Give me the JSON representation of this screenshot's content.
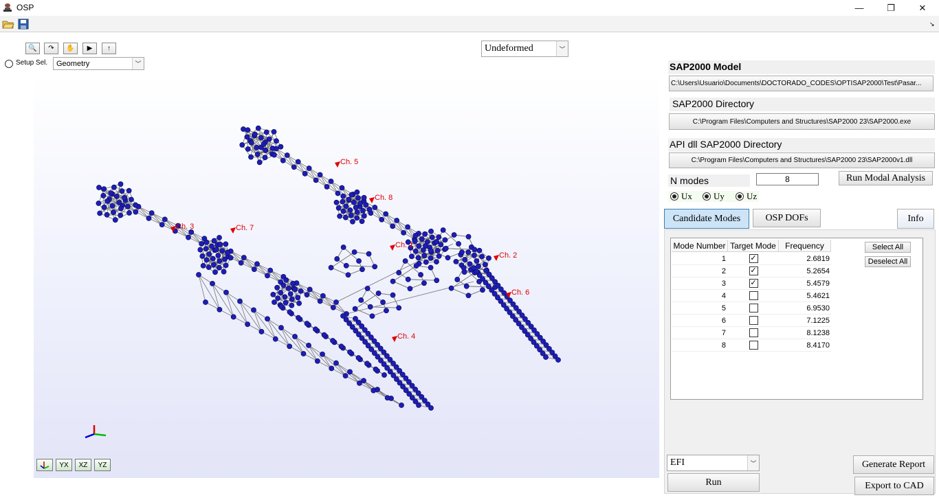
{
  "window": {
    "title": "OSP",
    "minimize": "—",
    "maximize": "❐",
    "close": "✕"
  },
  "view_toolbar": {
    "zoom_icon": "🔍",
    "rotate_icon": "↷",
    "pan_icon": "✋",
    "play_icon": "▶",
    "up_icon": "↑"
  },
  "setup": {
    "label": "Setup Sel.",
    "geometry_value": "Geometry"
  },
  "deform_select": {
    "value": "Undeformed"
  },
  "axis_buttons": {
    "xyz": "",
    "yx": "YX",
    "xz": "XZ",
    "yz": "YZ"
  },
  "channels": [
    "Ch. 5",
    "Ch. 8",
    "Ch. 3",
    "Ch. 7",
    "Ch. 1",
    "Ch. 2",
    "Ch. 6",
    "Ch. 4"
  ],
  "panel": {
    "sap_model_label": "SAP2000 Model",
    "sap_model_path": "C:\\Users\\Usuario\\Documents\\DOCTORADO_CODES\\OPTISAP2000\\Test\\Pasar...",
    "sap_dir_label": "SAP2000 Directory",
    "sap_dir_path": "C:\\Program Files\\Computers and Structures\\SAP2000 23\\SAP2000.exe",
    "api_dir_label": "API dll SAP2000 Directory",
    "api_dir_path": "C:\\Program Files\\Computers and Structures\\SAP2000 23\\SAP2000v1.dll",
    "n_modes_label": "N modes",
    "n_modes_value": "8",
    "run_modal_button": "Run Modal Analysis",
    "dofs": [
      "Ux",
      "Uy",
      "Uz"
    ]
  },
  "tabs": {
    "candidate": "Candidate Modes",
    "osp": "OSP DOFs",
    "info": "Info"
  },
  "modes_table": {
    "headers": [
      "Mode Number",
      "Target Mode",
      "Frequency"
    ],
    "rows": [
      {
        "n": "1",
        "target": true,
        "freq": "2.6819"
      },
      {
        "n": "2",
        "target": true,
        "freq": "5.2654"
      },
      {
        "n": "3",
        "target": true,
        "freq": "5.4579"
      },
      {
        "n": "4",
        "target": false,
        "freq": "5.4621"
      },
      {
        "n": "5",
        "target": false,
        "freq": "6.9530"
      },
      {
        "n": "6",
        "target": false,
        "freq": "7.1225"
      },
      {
        "n": "7",
        "target": false,
        "freq": "8.1238"
      },
      {
        "n": "8",
        "target": false,
        "freq": "8.4170"
      }
    ],
    "select_all": "Select All",
    "deselect_all": "Deselect All"
  },
  "bottom": {
    "method_value": "EFI",
    "run_button": "Run",
    "generate_report": "Generate Report",
    "export_cad": "Export to CAD"
  }
}
